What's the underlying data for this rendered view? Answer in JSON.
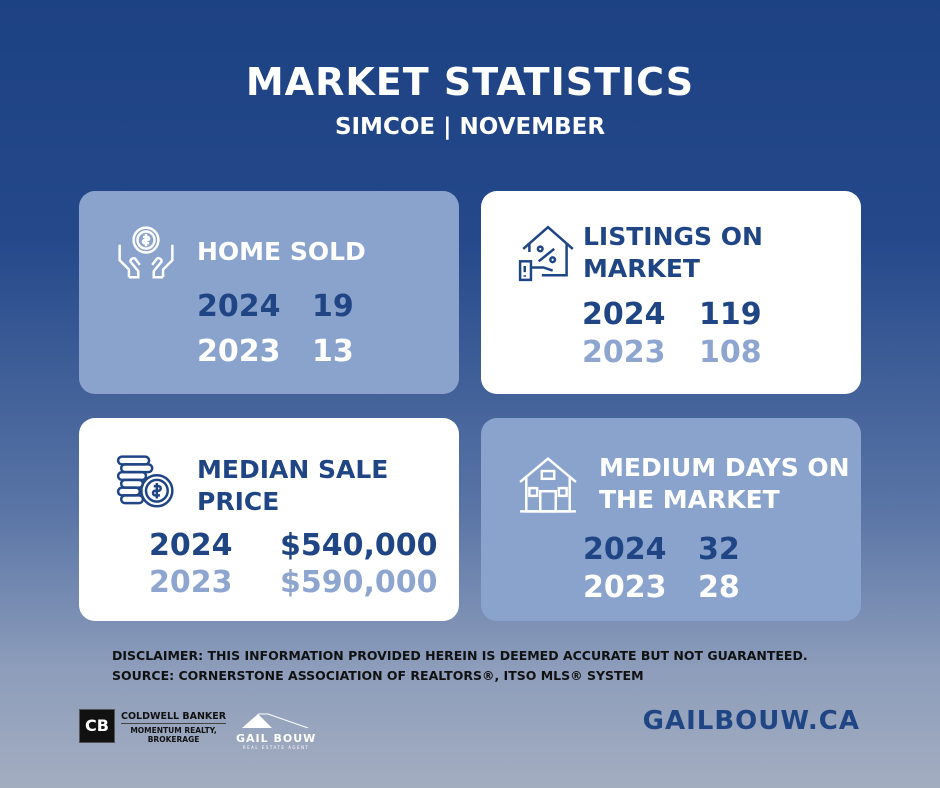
{
  "header": {
    "title": "MARKET STATISTICS",
    "subtitle": "SIMCOE | NOVEMBER"
  },
  "cards": [
    {
      "title": "HOME SOLD",
      "icon": "hands-coin-icon",
      "rows": [
        {
          "year": "2024",
          "value": "19"
        },
        {
          "year": "2023",
          "value": "13"
        }
      ]
    },
    {
      "title_line1": "LISTINGS ON",
      "title_line2": "MARKET",
      "icon": "house-percent-icon",
      "rows": [
        {
          "year": "2024",
          "value": "119"
        },
        {
          "year": "2023",
          "value": "108"
        }
      ]
    },
    {
      "title_line1": "MEDIAN SALE",
      "title_line2": "PRICE",
      "icon": "coins-dollar-icon",
      "rows": [
        {
          "year": "2024",
          "value": "$540,000"
        },
        {
          "year": "2023",
          "value": "$590,000"
        }
      ]
    },
    {
      "title_line1": "MEDIUM DAYS ON",
      "title_line2": "THE MARKET",
      "icon": "house-icon",
      "rows": [
        {
          "year": "2024",
          "value": "32"
        },
        {
          "year": "2023",
          "value": "28"
        }
      ]
    }
  ],
  "disclaimer": {
    "line1": "DISCLAIMER: THIS INFORMATION PROVIDED HEREIN IS DEEMED ACCURATE BUT NOT GUARANTEED.",
    "line2": "SOURCE: CORNERSTONE ASSOCIATION OF REALTORS®, ITSO MLS® SYSTEM"
  },
  "footer": {
    "brokerage_logo_text": "CB",
    "brokerage_line1": "COLDWELL BANKER",
    "brokerage_line2": "MOMENTUM REALTY,",
    "brokerage_line3": "BROKERAGE",
    "agent_logo": "GAIL BOUW",
    "agent_logo_sub": "REAL ESTATE AGENT",
    "website": "GAILBOUW.CA"
  },
  "colors": {
    "dark_blue": "#1f4584",
    "card_light": "#8aa3cc",
    "light_text": "#8ea6cf"
  }
}
